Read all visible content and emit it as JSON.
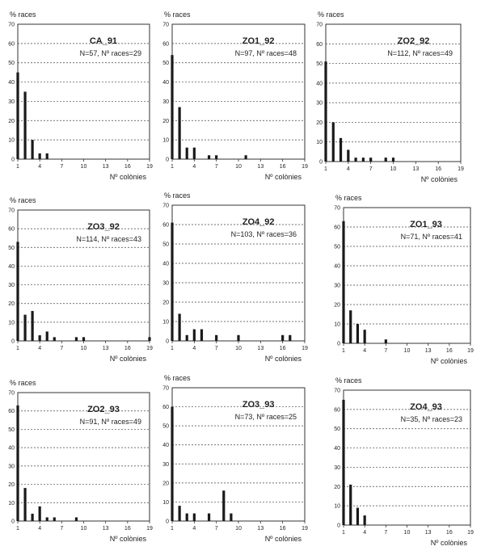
{
  "figure": {
    "y_label": "% races",
    "x_label": "Nº colònies"
  },
  "chart_data": [
    {
      "type": "bar",
      "title": "CA_91",
      "subtitle": "N=57,  Nº races=29",
      "xlim": [
        1,
        19
      ],
      "ylim": [
        0,
        70
      ],
      "xticks": [
        1,
        4,
        7,
        10,
        13,
        16,
        19
      ],
      "yticks": [
        0,
        10,
        20,
        30,
        40,
        50,
        60,
        70
      ],
      "x": [
        1,
        2,
        3,
        4,
        5
      ],
      "values": [
        45,
        35,
        10,
        3,
        3
      ],
      "grid": "horizontal dashed"
    },
    {
      "type": "bar",
      "title": "ZO1_92",
      "subtitle": "N=97,  Nº races=48",
      "xlim": [
        1,
        19
      ],
      "ylim": [
        0,
        70
      ],
      "xticks": [
        1,
        4,
        7,
        10,
        13,
        16,
        19
      ],
      "yticks": [
        0,
        10,
        20,
        30,
        40,
        50,
        60,
        70
      ],
      "x": [
        1,
        2,
        3,
        4,
        6,
        7,
        11
      ],
      "values": [
        54,
        27,
        6,
        6,
        2,
        2,
        2
      ],
      "grid": "horizontal dashed"
    },
    {
      "type": "bar",
      "title": "ZO2_92",
      "subtitle": "N=112,  Nº races=49",
      "xlim": [
        1,
        19
      ],
      "ylim": [
        0,
        70
      ],
      "xticks": [
        1,
        4,
        7,
        10,
        13,
        16,
        19
      ],
      "yticks": [
        0,
        10,
        20,
        30,
        40,
        50,
        60,
        70
      ],
      "x": [
        1,
        2,
        3,
        4,
        5,
        6,
        7,
        9,
        10
      ],
      "values": [
        51,
        20,
        12,
        6,
        2,
        2,
        2,
        2,
        2
      ],
      "grid": "horizontal dashed"
    },
    {
      "type": "bar",
      "title": "ZO3_92",
      "subtitle": "N=114,  Nº races=43",
      "xlim": [
        1,
        19
      ],
      "ylim": [
        0,
        70
      ],
      "xticks": [
        1,
        4,
        7,
        10,
        13,
        16,
        19
      ],
      "yticks": [
        0,
        10,
        20,
        30,
        40,
        50,
        60,
        70
      ],
      "x": [
        1,
        2,
        3,
        4,
        5,
        6,
        9,
        10,
        19
      ],
      "values": [
        53,
        14,
        16,
        3,
        5,
        2,
        2,
        2,
        2
      ],
      "grid": "horizontal dashed"
    },
    {
      "type": "bar",
      "title": "ZO4_92",
      "subtitle": "N=103,  Nº races=36",
      "xlim": [
        1,
        19
      ],
      "ylim": [
        0,
        70
      ],
      "xticks": [
        1,
        4,
        7,
        10,
        13,
        16,
        19
      ],
      "yticks": [
        0,
        10,
        20,
        30,
        40,
        50,
        60,
        70
      ],
      "x": [
        1,
        2,
        3,
        4,
        5,
        7,
        10,
        16,
        17
      ],
      "values": [
        61,
        14,
        3,
        6,
        6,
        3,
        3,
        3,
        3
      ],
      "grid": "horizontal dashed"
    },
    {
      "type": "bar",
      "title": "ZO1_93",
      "subtitle": "N=71,  Nº races=41",
      "xlim": [
        1,
        19
      ],
      "ylim": [
        0,
        70
      ],
      "xticks": [
        1,
        4,
        7,
        10,
        13,
        16,
        19
      ],
      "yticks": [
        0,
        10,
        20,
        30,
        40,
        50,
        60,
        70
      ],
      "x": [
        1,
        2,
        3,
        4,
        7
      ],
      "values": [
        63,
        17,
        10,
        7,
        2
      ],
      "grid": "horizontal dashed"
    },
    {
      "type": "bar",
      "title": "ZO2_93",
      "subtitle": "N=91,  Nº races=49",
      "xlim": [
        1,
        19
      ],
      "ylim": [
        0,
        70
      ],
      "xticks": [
        1,
        4,
        7,
        10,
        13,
        16,
        19
      ],
      "yticks": [
        0,
        10,
        20,
        30,
        40,
        50,
        60,
        70
      ],
      "x": [
        1,
        2,
        3,
        4,
        5,
        6,
        9
      ],
      "values": [
        63,
        18,
        4,
        8,
        2,
        2,
        2
      ],
      "grid": "horizontal dashed"
    },
    {
      "type": "bar",
      "title": "ZO3_93",
      "subtitle": "N=73,  Nº races=25",
      "xlim": [
        1,
        19
      ],
      "ylim": [
        0,
        70
      ],
      "xticks": [
        1,
        4,
        7,
        10,
        13,
        16,
        19
      ],
      "yticks": [
        0,
        10,
        20,
        30,
        40,
        50,
        60,
        70
      ],
      "x": [
        1,
        2,
        3,
        4,
        6,
        8,
        9
      ],
      "values": [
        60,
        8,
        4,
        4,
        4,
        16,
        4
      ],
      "grid": "horizontal dashed"
    },
    {
      "type": "bar",
      "title": "ZO4_93",
      "subtitle": "N=35,  Nº races=23",
      "xlim": [
        1,
        19
      ],
      "ylim": [
        0,
        70
      ],
      "xticks": [
        1,
        4,
        7,
        10,
        13,
        16,
        19
      ],
      "yticks": [
        0,
        10,
        20,
        30,
        40,
        50,
        60,
        70
      ],
      "x": [
        1,
        2,
        3,
        4
      ],
      "values": [
        65,
        21,
        9,
        5
      ],
      "grid": "horizontal dashed"
    }
  ]
}
